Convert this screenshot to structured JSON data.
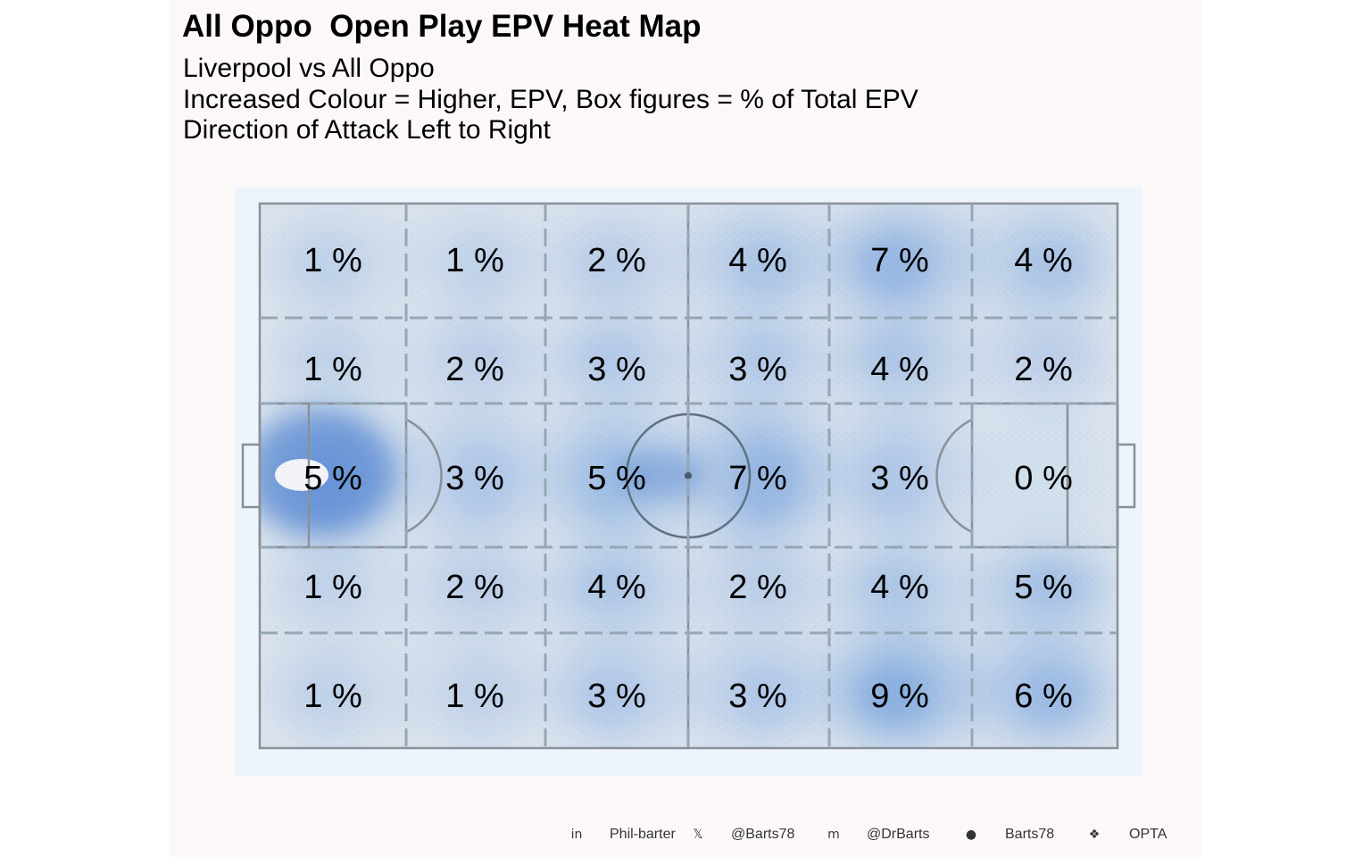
{
  "title": "All Oppo  Open Play EPV Heat Map",
  "subtitle_lines": [
    "Liverpool vs All Oppo",
    "Increased Colour = Higher, EPV, Box figures = % of Total EPV",
    "Direction of Attack Left to Right"
  ],
  "chart_data": {
    "type": "heatmap",
    "direction": "Direction of Attack Left to Right",
    "grid_columns": 6,
    "grid_rows": 5,
    "zone_percentages": [
      [
        "1 %",
        "1 %",
        "2 %",
        "4 %",
        "7 %",
        "4 %"
      ],
      [
        "1 %",
        "2 %",
        "3 %",
        "3 %",
        "4 %",
        "2 %"
      ],
      [
        "5 %",
        "3 %",
        "5 %",
        "7 %",
        "3 %",
        "0 %"
      ],
      [
        "1 %",
        "2 %",
        "4 %",
        "2 %",
        "4 %",
        "5 %"
      ],
      [
        "1 %",
        "1 %",
        "3 %",
        "3 %",
        "9 %",
        "6 %"
      ]
    ],
    "zone_values": [
      [
        1,
        1,
        2,
        4,
        7,
        4
      ],
      [
        1,
        2,
        3,
        3,
        4,
        2
      ],
      [
        5,
        3,
        5,
        7,
        3,
        0
      ],
      [
        1,
        2,
        4,
        2,
        4,
        5
      ],
      [
        1,
        1,
        3,
        3,
        9,
        6
      ]
    ],
    "density_color": "#4a86d8",
    "pitch_color": "#dfe6ee",
    "line_color": "#8a9099"
  },
  "caption": {
    "items": [
      {
        "icon": "linkedin-icon",
        "glyph": "in",
        "text": "Phil-barter"
      },
      {
        "icon": "x-twitter-icon",
        "glyph": "𝕏",
        "text": "@Barts78"
      },
      {
        "icon": "mastodon-icon",
        "glyph": "m",
        "text": "@DrBarts"
      },
      {
        "icon": "github-icon",
        "glyph": "●",
        "text": "Barts78"
      },
      {
        "icon": "dropbox-icon",
        "glyph": "❖",
        "text": "OPTA"
      }
    ]
  }
}
